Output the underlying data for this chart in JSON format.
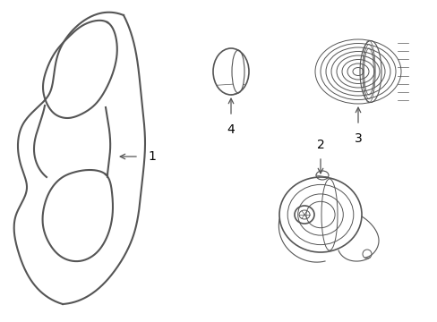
{
  "bg_color": "#ffffff",
  "line_color": "#555555",
  "label_color": "#000000",
  "figsize": [
    4.89,
    3.6
  ],
  "dpi": 100
}
